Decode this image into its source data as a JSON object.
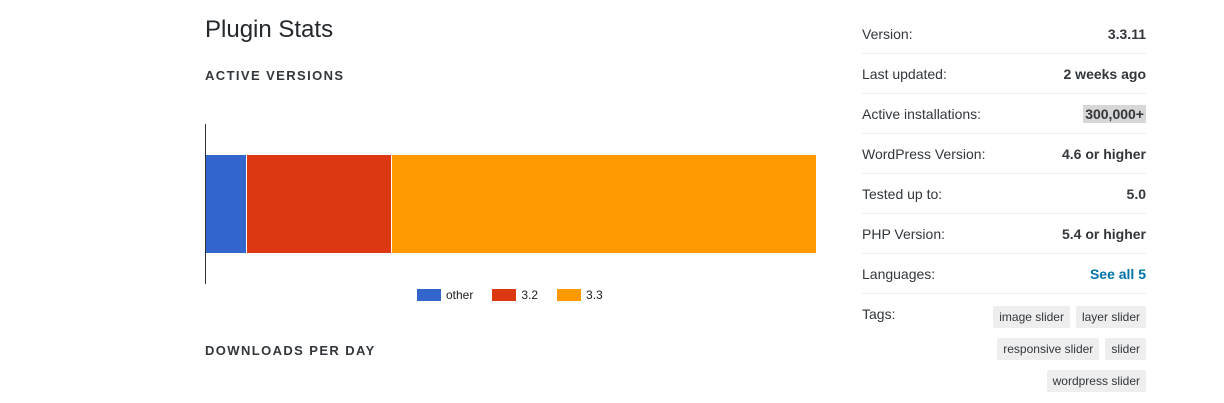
{
  "page": {
    "title": "Plugin Stats",
    "active_versions_heading": "ACTIVE VERSIONS",
    "downloads_heading": "DOWNLOADS PER DAY"
  },
  "chart_data": {
    "type": "bar",
    "orientation": "horizontal-stacked",
    "categories": [
      "other",
      "3.2",
      "3.3"
    ],
    "series": [
      {
        "name": "other",
        "value": 6.6,
        "color": "#3366cc"
      },
      {
        "name": "3.2",
        "value": 23.8,
        "color": "#dc3912"
      },
      {
        "name": "3.3",
        "value": 69.6,
        "color": "#ff9900"
      }
    ],
    "xlim": [
      0,
      100
    ],
    "legend": "bottom"
  },
  "meta": {
    "version_label": "Version:",
    "version_value": "3.3.11",
    "updated_label": "Last updated:",
    "updated_value": "2 weeks ago",
    "installs_label": "Active installations:",
    "installs_value": "300,000+",
    "wp_label": "WordPress Version:",
    "wp_value": "4.6 or higher",
    "tested_label": "Tested up to:",
    "tested_value": "5.0",
    "php_label": "PHP Version:",
    "php_value": "5.4 or higher",
    "languages_label": "Languages:",
    "languages_link": "See all 5",
    "tags_label": "Tags:",
    "tags": [
      "image slider",
      "layer slider",
      "responsive slider",
      "slider",
      "wordpress slider"
    ]
  }
}
